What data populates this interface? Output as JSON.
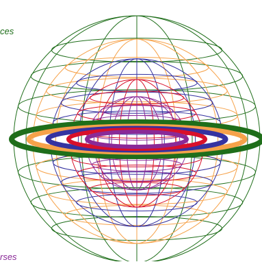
{
  "captions": {
    "top": "ces",
    "bottom": "rses"
  },
  "colors": {
    "green": "#1f6e1a",
    "orange": "#f6a24a",
    "blue": "#3532a0",
    "red": "#d8102a",
    "purple": "#8a2a97",
    "caption_top": "#1f6e1a",
    "caption_bottom": "#8a2a97"
  },
  "spheres": [
    {
      "name": "green-sphere",
      "color_key": "green"
    },
    {
      "name": "orange-sphere",
      "color_key": "orange"
    },
    {
      "name": "blue-sphere",
      "color_key": "blue"
    },
    {
      "name": "red-sphere",
      "color_key": "red"
    },
    {
      "name": "purple-sphere",
      "color_key": "purple"
    }
  ]
}
